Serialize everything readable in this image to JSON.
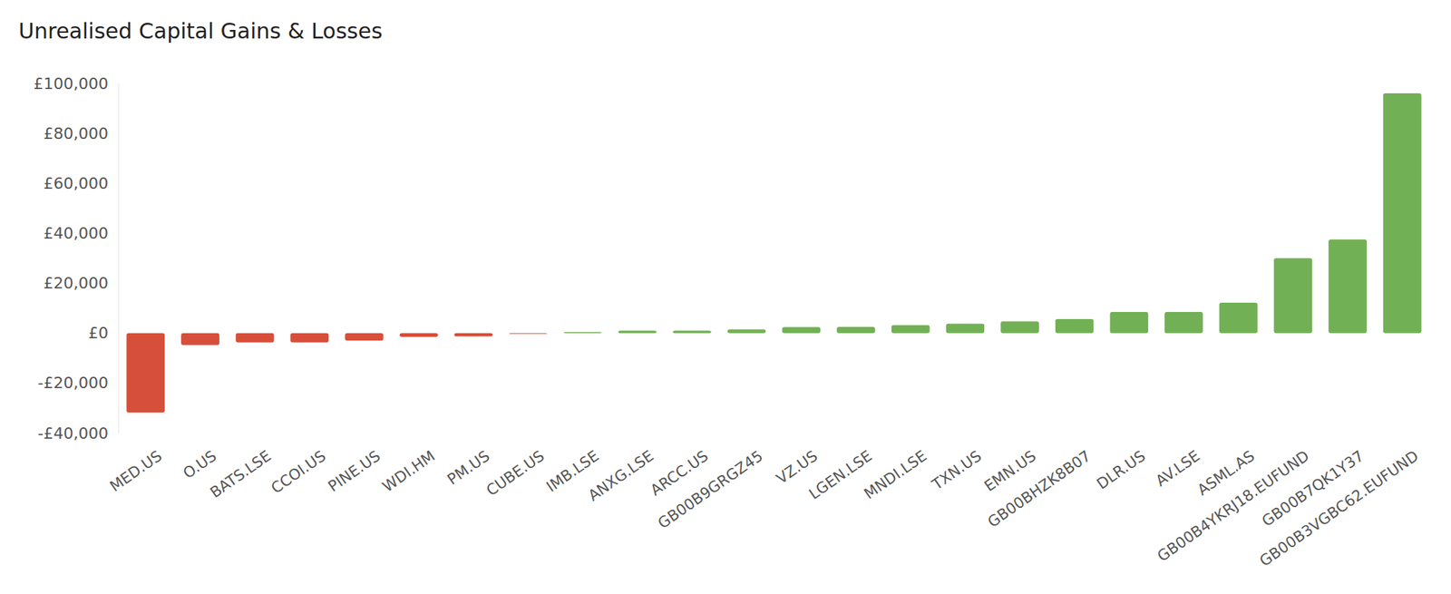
{
  "chart_data": {
    "type": "bar",
    "title": "Unrealised Capital Gains & Losses",
    "categories": [
      "MED.US",
      "O.US",
      "BATS.LSE",
      "CCOI.US",
      "PINE.US",
      "WDI.HM",
      "PM.US",
      "CUBE.US",
      "IMB.LSE",
      "ANXG.LSE",
      "ARCC.US",
      "GB00B9GRGZ45",
      "VZ.US",
      "LGEN.LSE",
      "MNDI.LSE",
      "TXN.US",
      "EMN.US",
      "GB00BHZK8B07",
      "DLR.US",
      "AV.LSE",
      "ASML.AS",
      "GB00B4YKRJ18.EUFUND",
      "GB00B7QK1Y37",
      "GB00B3VGBC62.EUFUND"
    ],
    "values": [
      -31800,
      -4800,
      -3700,
      -3700,
      -3000,
      -1500,
      -1300,
      -300,
      400,
      1000,
      1000,
      1500,
      2400,
      2500,
      3200,
      3800,
      4700,
      5600,
      8500,
      8500,
      12200,
      30000,
      37500,
      96000
    ],
    "colors": [
      "#d64f3a",
      "#d64f3a",
      "#d64f3a",
      "#d64f3a",
      "#d64f3a",
      "#d64f3a",
      "#d64f3a",
      "#d64f3a",
      "#72b055",
      "#72b055",
      "#72b055",
      "#72b055",
      "#72b055",
      "#72b055",
      "#72b055",
      "#72b055",
      "#72b055",
      "#72b055",
      "#72b055",
      "#72b055",
      "#72b055",
      "#72b055",
      "#72b055",
      "#72b055"
    ],
    "ylim": [
      -40000,
      100000
    ],
    "yticks": [
      {
        "value": -40000,
        "label": "-£40,000"
      },
      {
        "value": -20000,
        "label": "-£20,000"
      },
      {
        "value": 0,
        "label": "£0"
      },
      {
        "value": 20000,
        "label": "£20,000"
      },
      {
        "value": 40000,
        "label": "£40,000"
      },
      {
        "value": 60000,
        "label": "£60,000"
      },
      {
        "value": 80000,
        "label": "£80,000"
      },
      {
        "value": 100000,
        "label": "£100,000"
      }
    ],
    "grid": false
  }
}
